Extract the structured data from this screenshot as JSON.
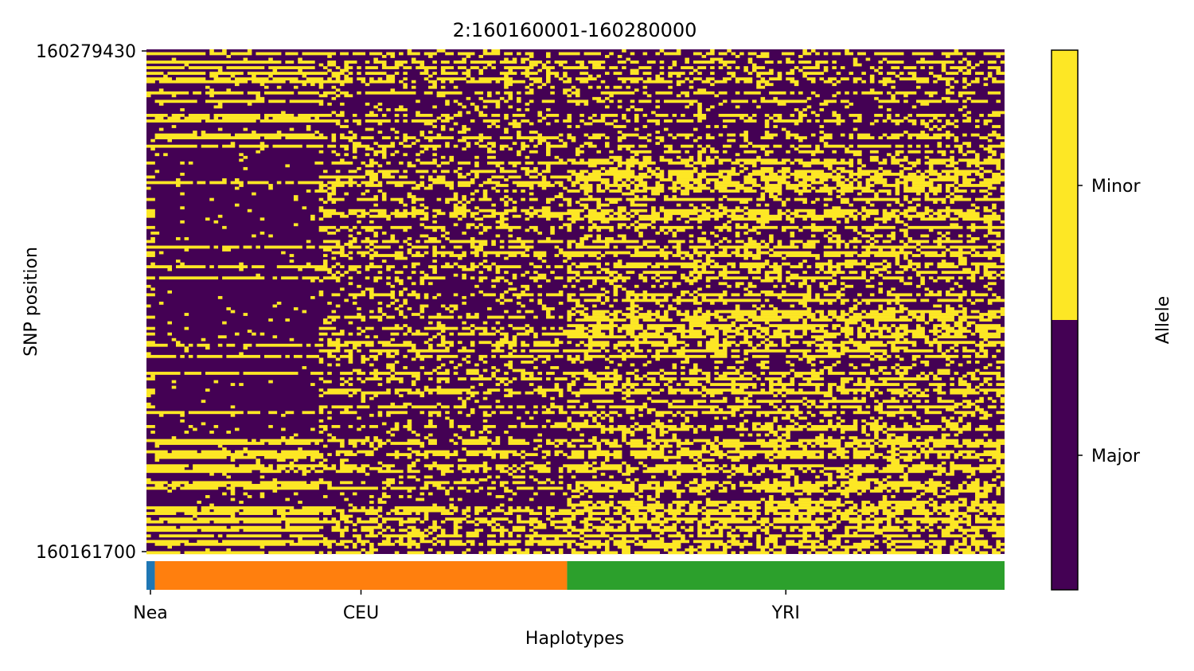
{
  "chart_data": {
    "type": "heatmap",
    "title": "2:160160001-160280000",
    "xlabel": "Haplotypes",
    "ylabel": "SNP position",
    "yticks": [
      "160279430",
      "160161700"
    ],
    "populations": [
      {
        "name": "Nea",
        "start": 0,
        "end": 2,
        "color": "#1f77b4"
      },
      {
        "name": "CEU",
        "start": 2,
        "end": 100,
        "color": "#ff7f0e"
      },
      {
        "name": "YRI",
        "start": 100,
        "end": 204,
        "color": "#2ca02c"
      }
    ],
    "colorbar": {
      "label": "Allele",
      "categories": [
        {
          "name": "Major",
          "color": "#440154"
        },
        {
          "name": "Minor",
          "color": "#fde725"
        }
      ]
    },
    "grid": false
  }
}
